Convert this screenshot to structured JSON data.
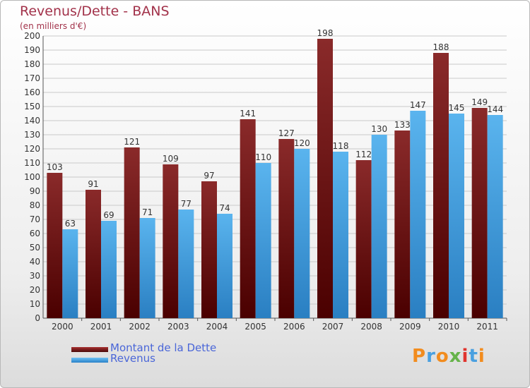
{
  "header": {
    "title": "Revenus/Dette - BANS",
    "subtitle": "(en milliers d'€)"
  },
  "legend": {
    "items": [
      {
        "label": "Montant de la Dette",
        "color": "#7a1d1d"
      },
      {
        "label": "Revenus",
        "color": "#4ea6e6"
      }
    ]
  },
  "logo": {
    "text": "Proxiti",
    "letters": [
      {
        "ch": "P",
        "color": "#f28c1e"
      },
      {
        "ch": "r",
        "color": "#4aa0e0"
      },
      {
        "ch": "o",
        "color": "#f28c1e"
      },
      {
        "ch": "x",
        "color": "#66b34a"
      },
      {
        "ch": "i",
        "color": "#e0342e"
      },
      {
        "ch": "t",
        "color": "#4aa0e0"
      },
      {
        "ch": "i",
        "color": "#f28c1e"
      }
    ]
  },
  "chart_data": {
    "type": "bar",
    "title": "Revenus/Dette - BANS",
    "subtitle": "(en milliers d'€)",
    "categories": [
      "2000",
      "2001",
      "2002",
      "2003",
      "2004",
      "2005",
      "2006",
      "2007",
      "2008",
      "2009",
      "2010",
      "2011"
    ],
    "series": [
      {
        "name": "Montant de la Dette",
        "color": "#7a1d1d",
        "values": [
          103,
          91,
          121,
          109,
          97,
          141,
          127,
          198,
          112,
          133,
          188,
          149
        ]
      },
      {
        "name": "Revenus",
        "color": "#4ea6e6",
        "values": [
          63,
          69,
          71,
          77,
          74,
          110,
          120,
          118,
          130,
          147,
          145,
          144
        ]
      }
    ],
    "ylim": [
      0,
      200
    ],
    "ytick_step": 10,
    "grid": true,
    "legend_position": "bottom-left"
  }
}
